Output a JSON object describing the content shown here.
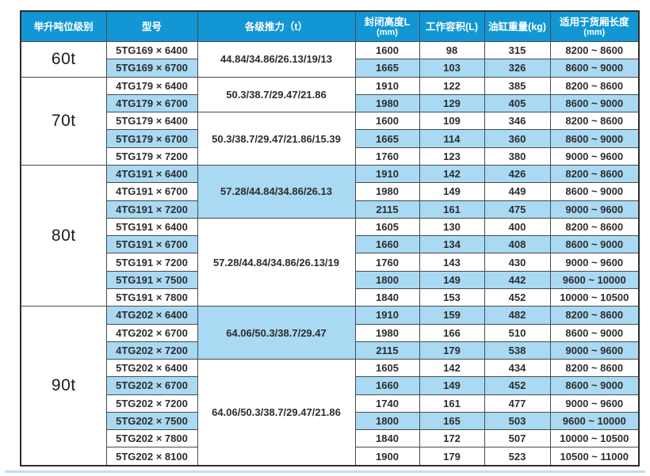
{
  "colors": {
    "header_bg": "#1297d4",
    "header_text": "#ffffff",
    "row_shade": "#a9d9f3",
    "grid_border": "#4a4a4a",
    "outer_border": "#2e2e2e",
    "bottom_rule": "#badff5",
    "cell_text": "#2d2d2d"
  },
  "table": {
    "columns": [
      {
        "label": "举升吨位级别",
        "sub": ""
      },
      {
        "label": "型号",
        "sub": ""
      },
      {
        "label": "各级推力（t）",
        "sub": ""
      },
      {
        "label": "封闭高度L",
        "sub": "(mm)"
      },
      {
        "label": "工作容积(L)",
        "sub": ""
      },
      {
        "label": "油缸重量(kg)",
        "sub": ""
      },
      {
        "label": "适用于货厢长度",
        "sub": "(mm)"
      }
    ],
    "groups": [
      {
        "tonnage": "60t",
        "thrust_blocks": [
          {
            "value": "44.84/34.86/26.13/19/13",
            "span": 2,
            "shaded": false
          }
        ],
        "rows": [
          {
            "model": "5TG169 × 6400",
            "height": "1600",
            "volume": "98",
            "weight": "315",
            "box": "8200 ~ 8600",
            "shaded": false
          },
          {
            "model": "5TG169 × 6700",
            "height": "1665",
            "volume": "103",
            "weight": "326",
            "box": "8600 ~ 9000",
            "shaded": true
          }
        ]
      },
      {
        "tonnage": "70t",
        "thrust_blocks": [
          {
            "value": "50.3/38.7/29.47/21.86",
            "span": 2,
            "shaded": false
          },
          {
            "value": "50.3/38.7/29.47/21.86/15.39",
            "span": 3,
            "shaded": false
          }
        ],
        "rows": [
          {
            "model": "4TG179 × 6400",
            "height": "1910",
            "volume": "122",
            "weight": "385",
            "box": "8200 ~ 8600",
            "shaded": false
          },
          {
            "model": "4TG179 × 6700",
            "height": "1980",
            "volume": "129",
            "weight": "405",
            "box": "8600 ~ 9000",
            "shaded": true
          },
          {
            "model": "5TG179 × 6400",
            "height": "1600",
            "volume": "109",
            "weight": "346",
            "box": "8200 ~ 8600",
            "shaded": false
          },
          {
            "model": "5TG179 × 6700",
            "height": "1665",
            "volume": "114",
            "weight": "360",
            "box": "8600 ~ 9000",
            "shaded": true
          },
          {
            "model": "5TG179 × 7200",
            "height": "1760",
            "volume": "123",
            "weight": "380",
            "box": "9000 ~ 9600",
            "shaded": false
          }
        ]
      },
      {
        "tonnage": "80t",
        "thrust_blocks": [
          {
            "value": "57.28/44.84/34.86/26.13",
            "span": 3,
            "shaded": true
          },
          {
            "value": "57.28/44.84/34.86/26.13/19",
            "span": 5,
            "shaded": false
          }
        ],
        "rows": [
          {
            "model": "4TG191 × 6400",
            "height": "1910",
            "volume": "142",
            "weight": "426",
            "box": "8200 ~ 8600",
            "shaded": true
          },
          {
            "model": "4TG191 × 6700",
            "height": "1980",
            "volume": "149",
            "weight": "449",
            "box": "8600 ~ 9000",
            "shaded": false
          },
          {
            "model": "4TG191 × 7200",
            "height": "2115",
            "volume": "161",
            "weight": "475",
            "box": "9000 ~ 9600",
            "shaded": true
          },
          {
            "model": "5TG191 × 6400",
            "height": "1605",
            "volume": "130",
            "weight": "400",
            "box": "8200 ~ 8600",
            "shaded": false
          },
          {
            "model": "5TG191 × 6700",
            "height": "1660",
            "volume": "134",
            "weight": "408",
            "box": "8600 ~ 9000",
            "shaded": true
          },
          {
            "model": "5TG191 × 7200",
            "height": "1760",
            "volume": "143",
            "weight": "430",
            "box": "9000 ~ 9600",
            "shaded": false
          },
          {
            "model": "5TG191 × 7500",
            "height": "1800",
            "volume": "149",
            "weight": "442",
            "box": "9600 ~ 10000",
            "shaded": true
          },
          {
            "model": "5TG191 × 7800",
            "height": "1840",
            "volume": "153",
            "weight": "452",
            "box": "10000 ~ 10500",
            "shaded": false
          }
        ]
      },
      {
        "tonnage": "90t",
        "thrust_blocks": [
          {
            "value": "64.06/50.3/38.7/29.47",
            "span": 3,
            "shaded": true
          },
          {
            "value": "64.06/50.3/38.7/29.47/21.86",
            "span": 6,
            "shaded": false
          }
        ],
        "rows": [
          {
            "model": "4TG202 × 6400",
            "height": "1910",
            "volume": "159",
            "weight": "482",
            "box": "8200 ~ 8600",
            "shaded": true
          },
          {
            "model": "4TG202 × 6700",
            "height": "1980",
            "volume": "166",
            "weight": "510",
            "box": "8600 ~ 9000",
            "shaded": false
          },
          {
            "model": "4TG202 × 7200",
            "height": "2115",
            "volume": "179",
            "weight": "538",
            "box": "9000 ~ 9600",
            "shaded": true
          },
          {
            "model": "5TG202 × 6400",
            "height": "1605",
            "volume": "142",
            "weight": "434",
            "box": "8200 ~ 8600",
            "shaded": false
          },
          {
            "model": "5TG202 × 6700",
            "height": "1660",
            "volume": "149",
            "weight": "452",
            "box": "8600 ~ 9000",
            "shaded": true
          },
          {
            "model": "5TG202 × 7200",
            "height": "1740",
            "volume": "161",
            "weight": "477",
            "box": "9000 ~ 9600",
            "shaded": false
          },
          {
            "model": "5TG202 × 7500",
            "height": "1800",
            "volume": "165",
            "weight": "503",
            "box": "9600 ~ 10000",
            "shaded": true
          },
          {
            "model": "5TG202 × 7800",
            "height": "1840",
            "volume": "172",
            "weight": "507",
            "box": "10000 ~ 10500",
            "shaded": false
          },
          {
            "model": "5TG202 × 8100",
            "height": "1900",
            "volume": "179",
            "weight": "523",
            "box": "10500 ~ 11000",
            "shaded": false
          }
        ]
      }
    ]
  }
}
